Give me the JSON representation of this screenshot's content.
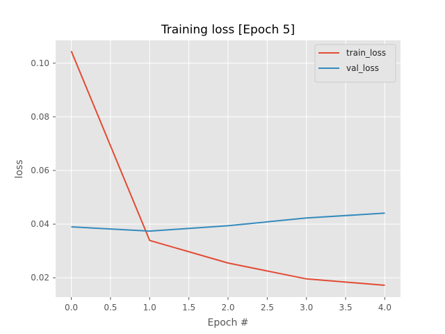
{
  "chart_data": {
    "type": "line",
    "title": "Training loss [Epoch 5]",
    "xlabel": "Epoch #",
    "ylabel": "loss",
    "xlim": [
      -0.2,
      4.2
    ],
    "ylim": [
      0.0128,
      0.1085
    ],
    "xticks": [
      0.0,
      0.5,
      1.0,
      1.5,
      2.0,
      2.5,
      3.0,
      3.5,
      4.0
    ],
    "xtick_labels": [
      "0.0",
      "0.5",
      "1.0",
      "1.5",
      "2.0",
      "2.5",
      "3.0",
      "3.5",
      "4.0"
    ],
    "yticks": [
      0.02,
      0.04,
      0.06,
      0.08,
      0.1
    ],
    "ytick_labels": [
      "0.02",
      "0.04",
      "0.06",
      "0.08",
      "0.10"
    ],
    "grid": true,
    "legend_position": "top-right",
    "x": [
      0,
      1,
      2,
      3,
      4
    ],
    "series": [
      {
        "name": "train_loss",
        "color": "#E24A33",
        "values": [
          0.1045,
          0.0339,
          0.0255,
          0.0196,
          0.0172
        ]
      },
      {
        "name": "val_loss",
        "color": "#348ABD",
        "values": [
          0.039,
          0.0374,
          0.0394,
          0.0423,
          0.0441
        ]
      }
    ],
    "style": {
      "plot_background": "#E5E5E5",
      "grid_color": "#FFFFFF"
    }
  }
}
